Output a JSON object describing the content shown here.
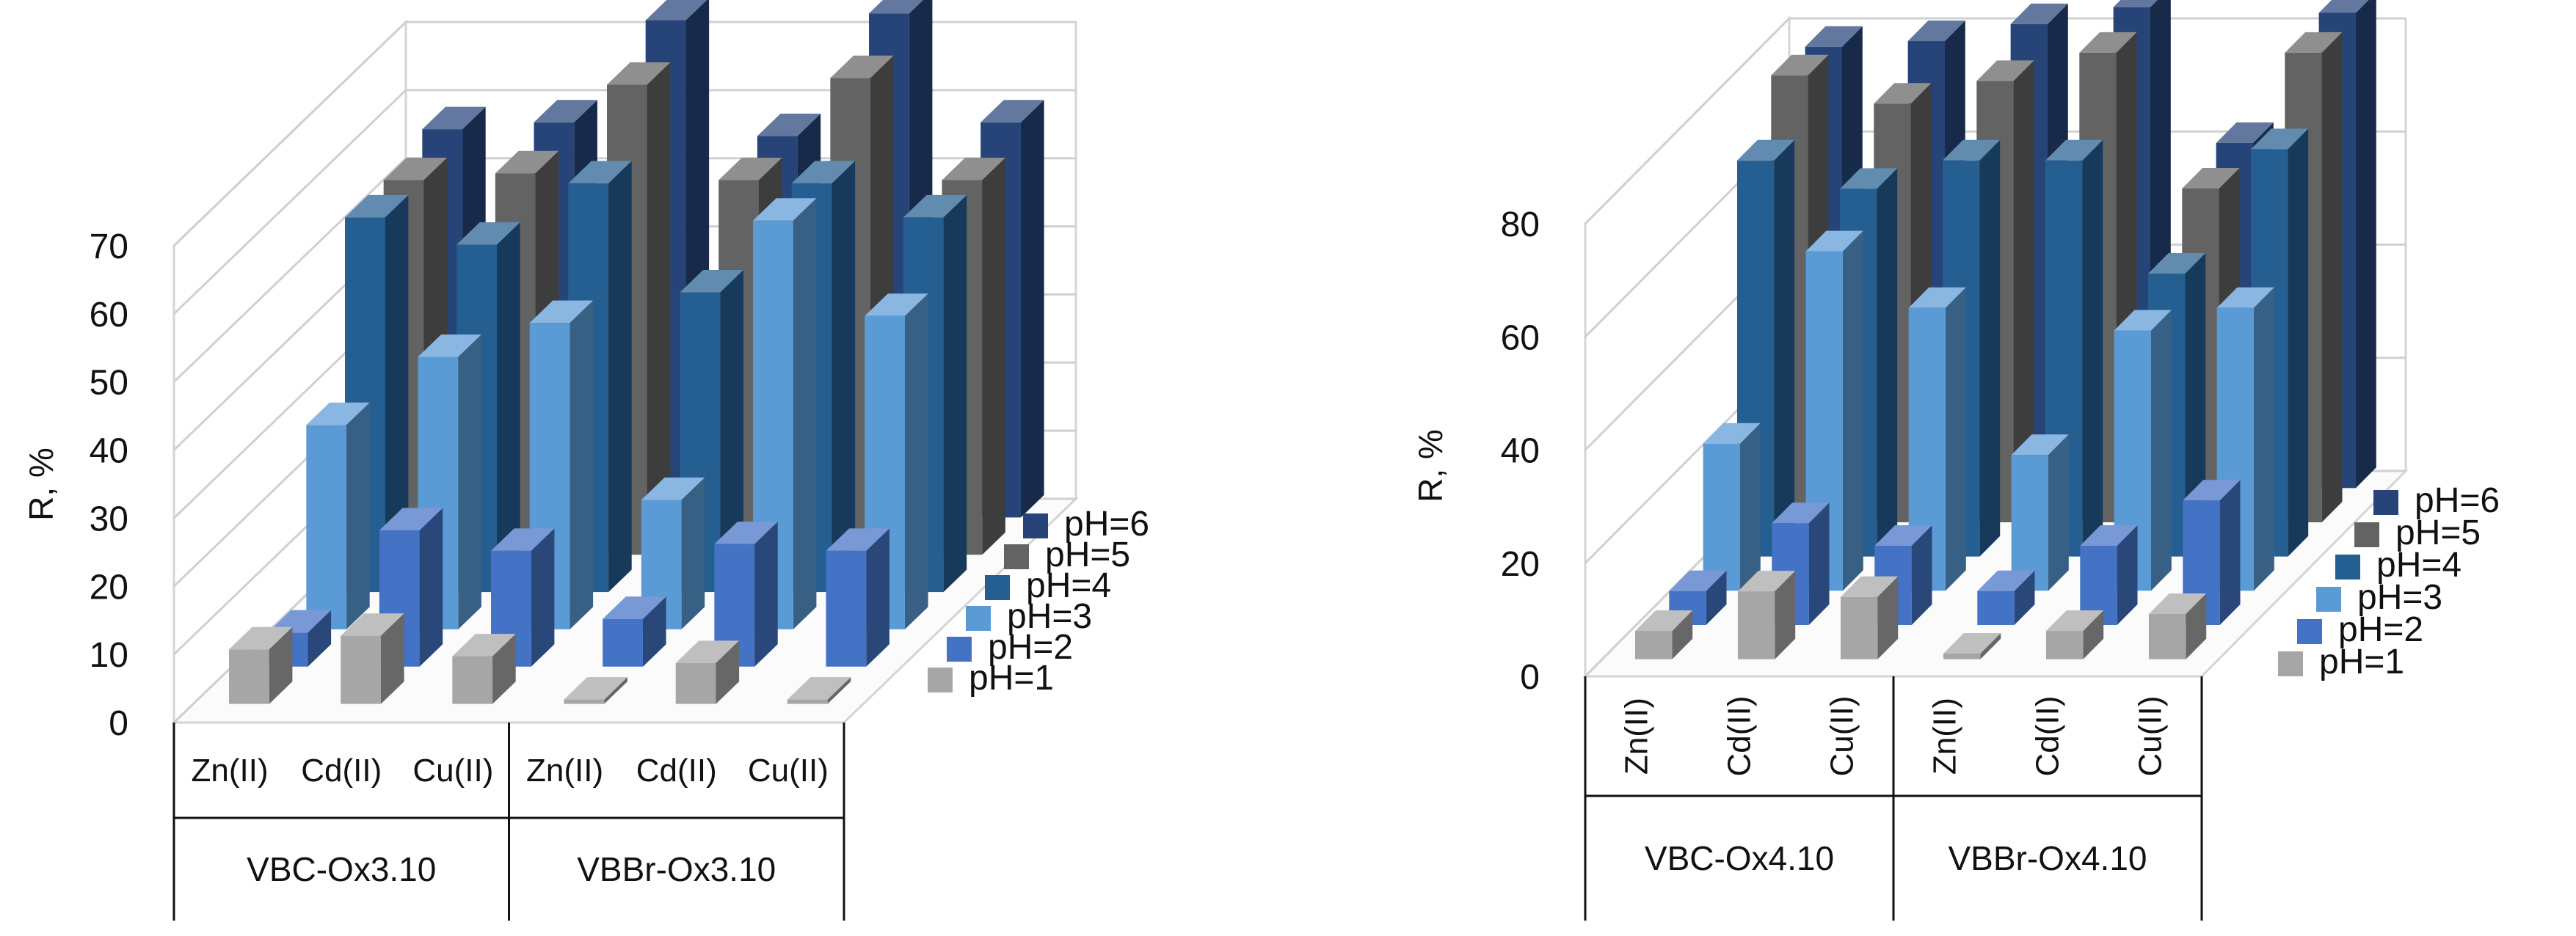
{
  "chart_data": [
    {
      "type": "bar",
      "ylabel": "R, %",
      "ylim": [
        0,
        70
      ],
      "yticks": [
        "0",
        "10",
        "20",
        "30",
        "40",
        "50",
        "60",
        "70"
      ],
      "grid": true,
      "legend_position": "right",
      "groups": [
        {
          "label": "VBC-Ox3.10",
          "categories": [
            "Zn(II)",
            "Cd(II)",
            "Cu(II)"
          ]
        },
        {
          "label": "VBBr-Ox3.10",
          "categories": [
            "Zn(II)",
            "Cd(II)",
            "Cu(II)"
          ]
        }
      ],
      "series": [
        {
          "name": "pH=1",
          "color": "#a6a6a6",
          "values": [
            8,
            10,
            7,
            0,
            6,
            0
          ]
        },
        {
          "name": "pH=2",
          "color": "#4472c4",
          "values": [
            5,
            20,
            17,
            7,
            18,
            17
          ]
        },
        {
          "name": "pH=3",
          "color": "#5b9bd5",
          "values": [
            30,
            40,
            45,
            19,
            60,
            46
          ]
        },
        {
          "name": "pH=4",
          "color": "#255e91",
          "values": [
            55,
            51,
            60,
            44,
            60,
            55
          ]
        },
        {
          "name": "pH=5",
          "color": "#636363",
          "values": [
            55,
            56,
            69,
            55,
            70,
            55
          ]
        },
        {
          "name": "pH=6",
          "color": "#264478",
          "values": [
            57,
            58,
            73,
            56,
            74,
            58
          ]
        }
      ]
    },
    {
      "type": "bar",
      "ylabel": "R, %",
      "ylim": [
        0,
        80
      ],
      "yticks": [
        "0",
        "20",
        "40",
        "60",
        "80"
      ],
      "grid": true,
      "legend_position": "right",
      "groups": [
        {
          "label": "VBC-Ox4.10",
          "categories": [
            "Zn(II)",
            "Cd(II)",
            "Cu(II)"
          ]
        },
        {
          "label": "VBBr-Ox4.10",
          "categories": [
            "Zn(II)",
            "Cd(II)",
            "Cu(II)"
          ]
        }
      ],
      "series": [
        {
          "name": "pH=1",
          "color": "#a6a6a6",
          "values": [
            5,
            12,
            11,
            1,
            5,
            8
          ]
        },
        {
          "name": "pH=2",
          "color": "#4472c4",
          "values": [
            6,
            18,
            14,
            6,
            14,
            22
          ]
        },
        {
          "name": "pH=3",
          "color": "#5b9bd5",
          "values": [
            26,
            60,
            50,
            24,
            46,
            50
          ]
        },
        {
          "name": "pH=4",
          "color": "#255e91",
          "values": [
            70,
            65,
            70,
            70,
            50,
            72
          ]
        },
        {
          "name": "pH=5",
          "color": "#636363",
          "values": [
            79,
            74,
            78,
            83,
            59,
            83
          ]
        },
        {
          "name": "pH=6",
          "color": "#264478",
          "values": [
            78,
            79,
            82,
            85,
            61,
            84
          ]
        }
      ]
    }
  ]
}
